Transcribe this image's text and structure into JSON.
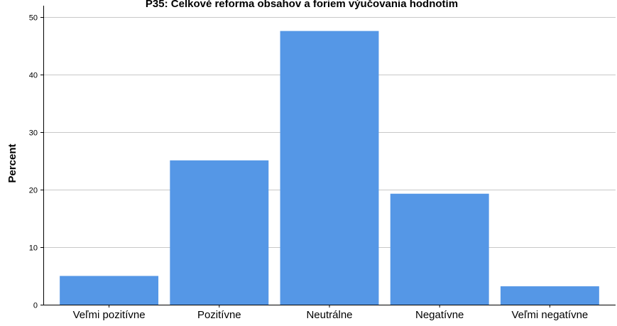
{
  "chart_data": {
    "type": "bar",
    "title": "P35: Celkové reforma obsahov a foriem výučovania hodnotím",
    "xlabel": "",
    "ylabel": "Percent",
    "ylim": [
      0,
      52
    ],
    "yticks": [
      0,
      10,
      20,
      30,
      40,
      50
    ],
    "categories": [
      "Veľmi pozitívne",
      "Pozitívne",
      "Neutrálne",
      "Negatívne",
      "Veľmi negatívne"
    ],
    "values": [
      5.0,
      25.1,
      47.6,
      19.3,
      3.2
    ],
    "grid": "horizontal",
    "bar_color": "#5597e6",
    "legend": "none"
  }
}
